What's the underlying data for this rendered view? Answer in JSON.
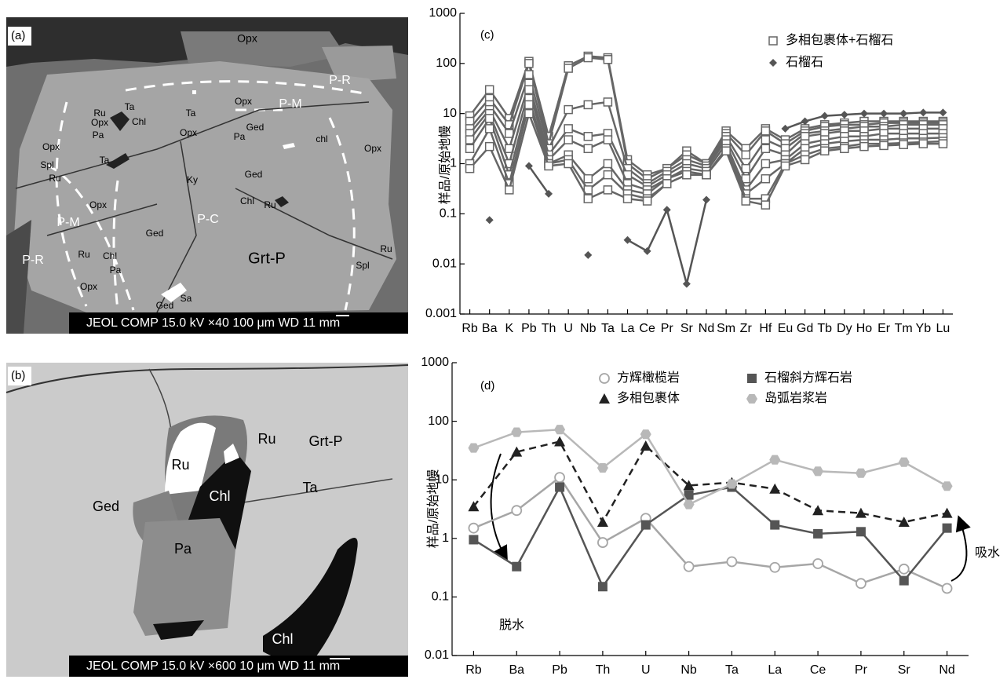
{
  "images": [
    {
      "panel": "(a)",
      "caption": "JEOL COMP 15.0 kV ×40 100 μm WD 11 mm",
      "labels": [
        "Opx",
        "P-R",
        "P-M",
        "Opx",
        "Ru",
        "Ta",
        "Ta",
        "Opx",
        "Chl",
        "Opx",
        "Ged",
        "Opx",
        "Opx",
        "Pa",
        "Pa",
        "chl",
        "Spl",
        "Ru",
        "Ta",
        "Ky",
        "Ged",
        "Opx",
        "Chl",
        "Ru",
        "P-M",
        "P-C",
        "Ged",
        "Grt-P",
        "P-R",
        "Ru",
        "Chl",
        "Pa",
        "Opx",
        "Ged",
        "Sa",
        "Ru",
        "Spl"
      ]
    },
    {
      "panel": "(b)",
      "caption": "JEOL COMP 15.0 kV ×600 10 μm WD 11 mm",
      "labels": [
        "Grt-P",
        "Ru",
        "Ru",
        "Chl",
        "Ged",
        "Ta",
        "Pa",
        "Chl"
      ]
    }
  ],
  "chart_data": [
    {
      "type": "line",
      "panel": "(c)",
      "y_label": "样品/原始地幔",
      "log_y": true,
      "ylim": [
        0.001,
        1000
      ],
      "yticks": [
        0.001,
        0.01,
        0.1,
        1,
        10,
        100,
        1000
      ],
      "categories": [
        "Rb",
        "Ba",
        "K",
        "Pb",
        "Th",
        "U",
        "Nb",
        "Ta",
        "La",
        "Ce",
        "Pr",
        "Sr",
        "Nd",
        "Sm",
        "Zr",
        "Hf",
        "Eu",
        "Gd",
        "Tb",
        "Dy",
        "Ho",
        "Er",
        "Tm",
        "Yb",
        "Lu"
      ],
      "series": [
        {
          "name": "多相包裹体+石榴石",
          "color": "#666666",
          "marker": "square",
          "values": [
            [
              9,
              30,
              8,
              110,
              3.5,
              90,
              140,
              130,
              1.2,
              0.6,
              0.8,
              1.8,
              1.0,
              4.5,
              2.0,
              5.0,
              3.0,
              5.0,
              6.0,
              6.5,
              7,
              7,
              7,
              7,
              7
            ],
            [
              7,
              20,
              6,
              100,
              2.5,
              80,
              130,
              120,
              1.0,
              0.5,
              0.8,
              1.5,
              1.0,
              4,
              1.5,
              4.5,
              2.5,
              4.5,
              5.5,
              6,
              6,
              6.5,
              6.5,
              6.5,
              6.5
            ],
            [
              5,
              15,
              4,
              60,
              2,
              12,
              15,
              17,
              0.8,
              0.4,
              0.7,
              1.2,
              0.9,
              3.5,
              0.8,
              3,
              2,
              4,
              4.5,
              5,
              5.5,
              5.5,
              6,
              6,
              6
            ],
            [
              4,
              12,
              2,
              40,
              1.5,
              5,
              3.5,
              4,
              0.6,
              0.35,
              0.6,
              1.0,
              0.8,
              3,
              0.5,
              2,
              1.5,
              3.5,
              4,
              4.5,
              4.5,
              5,
              5,
              5,
              5
            ],
            [
              3,
              10,
              1,
              30,
              1.2,
              3,
              2,
              3,
              0.4,
              0.3,
              0.5,
              0.8,
              0.7,
              2.5,
              0.3,
              1,
              1.2,
              2.5,
              3,
              3.5,
              3.5,
              4,
              4,
              4,
              4
            ],
            [
              2,
              8,
              0.6,
              20,
              1,
              1.5,
              0.5,
              1,
              0.3,
              0.25,
              0.5,
              0.7,
              0.6,
              2,
              0.25,
              0.5,
              1,
              2,
              2.5,
              2.8,
              3,
              3,
              3.2,
              3.2,
              3.3
            ],
            [
              1,
              5,
              0.4,
              15,
              1,
              1.2,
              0.3,
              0.6,
              0.25,
              0.2,
              0.4,
              0.6,
              0.6,
              2,
              0.2,
              0.2,
              1.0,
              1.5,
              2,
              2.2,
              2.5,
              2.5,
              2.6,
              2.7,
              2.8
            ],
            [
              0.8,
              2.2,
              0.3,
              10,
              0.9,
              1,
              0.2,
              0.3,
              0.2,
              0.18,
              0.4,
              0.6,
              0.6,
              1.8,
              0.18,
              0.15,
              0.9,
              1.2,
              1.8,
              2,
              2.2,
              2.3,
              2.4,
              2.5,
              2.5
            ]
          ]
        },
        {
          "name": "石榴石",
          "color": "#555555",
          "marker": "diamond",
          "values": [
            null,
            0.075,
            null,
            0.9,
            0.25,
            null,
            0.015,
            null,
            0.03,
            0.018,
            0.12,
            0.004,
            0.19,
            null,
            null,
            null,
            5,
            7,
            9,
            9.5,
            10,
            10,
            10,
            10.5,
            10.5
          ]
        }
      ]
    },
    {
      "type": "line",
      "panel": "(d)",
      "y_label": "样品/原始地幔",
      "log_y": true,
      "ylim": [
        0.01,
        1000
      ],
      "yticks": [
        0.01,
        0.1,
        1,
        10,
        100,
        1000
      ],
      "categories": [
        "Rb",
        "Ba",
        "Pb",
        "Th",
        "U",
        "Nb",
        "Ta",
        "La",
        "Ce",
        "Pr",
        "Sr",
        "Nd"
      ],
      "annotations": [
        "脱水",
        "吸水"
      ],
      "series": [
        {
          "name": "方辉橄榄岩",
          "color": "#a6a6a6",
          "marker": "circle",
          "values": [
            1.5,
            3,
            11,
            0.85,
            2.2,
            0.33,
            0.4,
            0.32,
            0.37,
            0.17,
            0.3,
            0.14
          ]
        },
        {
          "name": "多相包裹体",
          "color": "#222222",
          "marker": "triangle",
          "dash": true,
          "values": [
            3.5,
            30,
            45,
            1.9,
            38,
            8,
            9,
            7,
            3,
            2.7,
            1.9,
            2.7
          ]
        },
        {
          "name": "石榴斜方辉石岩",
          "color": "#555555",
          "marker": "square",
          "values": [
            0.95,
            0.33,
            7.5,
            0.15,
            1.7,
            5.5,
            7.5,
            1.7,
            1.2,
            1.3,
            0.19,
            1.5
          ]
        },
        {
          "name": "岛弧岩浆岩",
          "color": "#b8b8b8",
          "marker": "hexagon",
          "values": [
            35,
            65,
            72,
            16,
            60,
            3.8,
            8.5,
            22,
            14,
            13,
            20,
            7.8
          ]
        }
      ]
    }
  ]
}
